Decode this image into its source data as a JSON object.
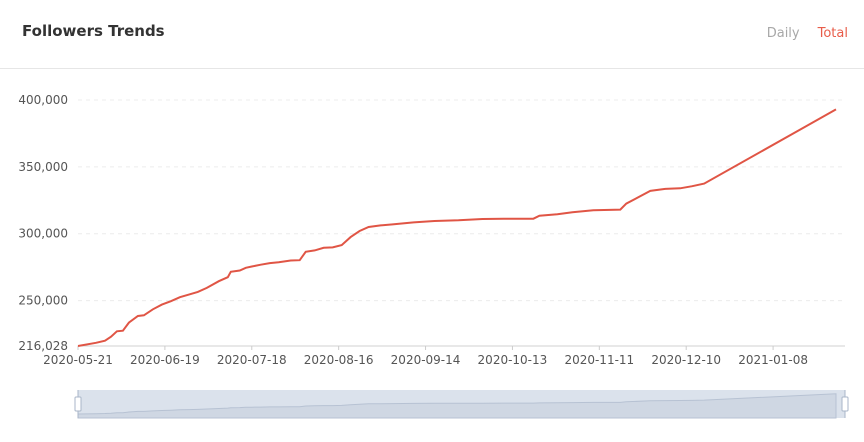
{
  "header": {
    "title": "Followers Trends",
    "tabs": [
      {
        "label": "Daily",
        "active": false
      },
      {
        "label": "Total",
        "active": true
      }
    ]
  },
  "colors": {
    "line": "#e05545",
    "active_tab": "#e85d4a",
    "inactive_tab": "#a8a8a8",
    "slider_fill": "#dbe2ec",
    "slider_handle": "#a9b6c8"
  },
  "chart_data": {
    "type": "line",
    "title": "",
    "xlabel": "",
    "ylabel": "",
    "x_ticks": [
      "2020-05-21",
      "2020-06-19",
      "2020-07-18",
      "2020-08-16",
      "2020-09-14",
      "2020-10-13",
      "2020-11-11",
      "2020-12-10",
      "2021-01-08"
    ],
    "y_ticks": [
      {
        "value": 216028,
        "label": "216,028"
      },
      {
        "value": 250000,
        "label": "250,000"
      },
      {
        "value": 300000,
        "label": "300,000"
      },
      {
        "value": 350000,
        "label": "350,000"
      },
      {
        "value": 400000,
        "label": "400,000"
      }
    ],
    "ylim": [
      216028,
      400000
    ],
    "xlim": [
      "2020-05-21",
      "2021-02-01"
    ],
    "grid": "horizontal-dashed",
    "series": [
      {
        "values": [
          [
            "2020-05-21",
            216028
          ],
          [
            "2020-05-27",
            218400
          ],
          [
            "2020-05-30",
            220000
          ],
          [
            "2020-06-01",
            223000
          ],
          [
            "2020-06-03",
            227000
          ],
          [
            "2020-06-05",
            227500
          ],
          [
            "2020-06-07",
            233500
          ],
          [
            "2020-06-10",
            238500
          ],
          [
            "2020-06-12",
            239000
          ],
          [
            "2020-06-15",
            243500
          ],
          [
            "2020-06-18",
            247000
          ],
          [
            "2020-06-21",
            249500
          ],
          [
            "2020-06-24",
            252500
          ],
          [
            "2020-06-27",
            254500
          ],
          [
            "2020-06-30",
            256500
          ],
          [
            "2020-07-03",
            259500
          ],
          [
            "2020-07-07",
            264500
          ],
          [
            "2020-07-10",
            267500
          ],
          [
            "2020-07-11",
            271500
          ],
          [
            "2020-07-14",
            272500
          ],
          [
            "2020-07-16",
            274500
          ],
          [
            "2020-07-18",
            275500
          ],
          [
            "2020-07-21",
            276800
          ],
          [
            "2020-07-24",
            278000
          ],
          [
            "2020-07-27",
            278600
          ],
          [
            "2020-07-31",
            280000
          ],
          [
            "2020-08-03",
            280200
          ],
          [
            "2020-08-05",
            286500
          ],
          [
            "2020-08-08",
            287500
          ],
          [
            "2020-08-11",
            289500
          ],
          [
            "2020-08-14",
            289800
          ],
          [
            "2020-08-17",
            291500
          ],
          [
            "2020-08-20",
            297500
          ],
          [
            "2020-08-23",
            302000
          ],
          [
            "2020-08-26",
            305000
          ],
          [
            "2020-08-30",
            306200
          ],
          [
            "2020-09-03",
            307000
          ],
          [
            "2020-09-10",
            308500
          ],
          [
            "2020-09-17",
            309500
          ],
          [
            "2020-09-25",
            310000
          ],
          [
            "2020-10-03",
            311000
          ],
          [
            "2020-10-10",
            311200
          ],
          [
            "2020-10-18",
            311200
          ],
          [
            "2020-10-20",
            311200
          ],
          [
            "2020-10-22",
            313500
          ],
          [
            "2020-10-28",
            314500
          ],
          [
            "2020-11-02",
            316000
          ],
          [
            "2020-11-09",
            317500
          ],
          [
            "2020-11-18",
            318000
          ],
          [
            "2020-11-20",
            322500
          ],
          [
            "2020-11-28",
            332000
          ],
          [
            "2020-12-03",
            333500
          ],
          [
            "2020-12-08",
            334000
          ],
          [
            "2020-12-12",
            335500
          ],
          [
            "2020-12-16",
            337500
          ],
          [
            "2021-01-29",
            393000
          ]
        ]
      }
    ]
  }
}
